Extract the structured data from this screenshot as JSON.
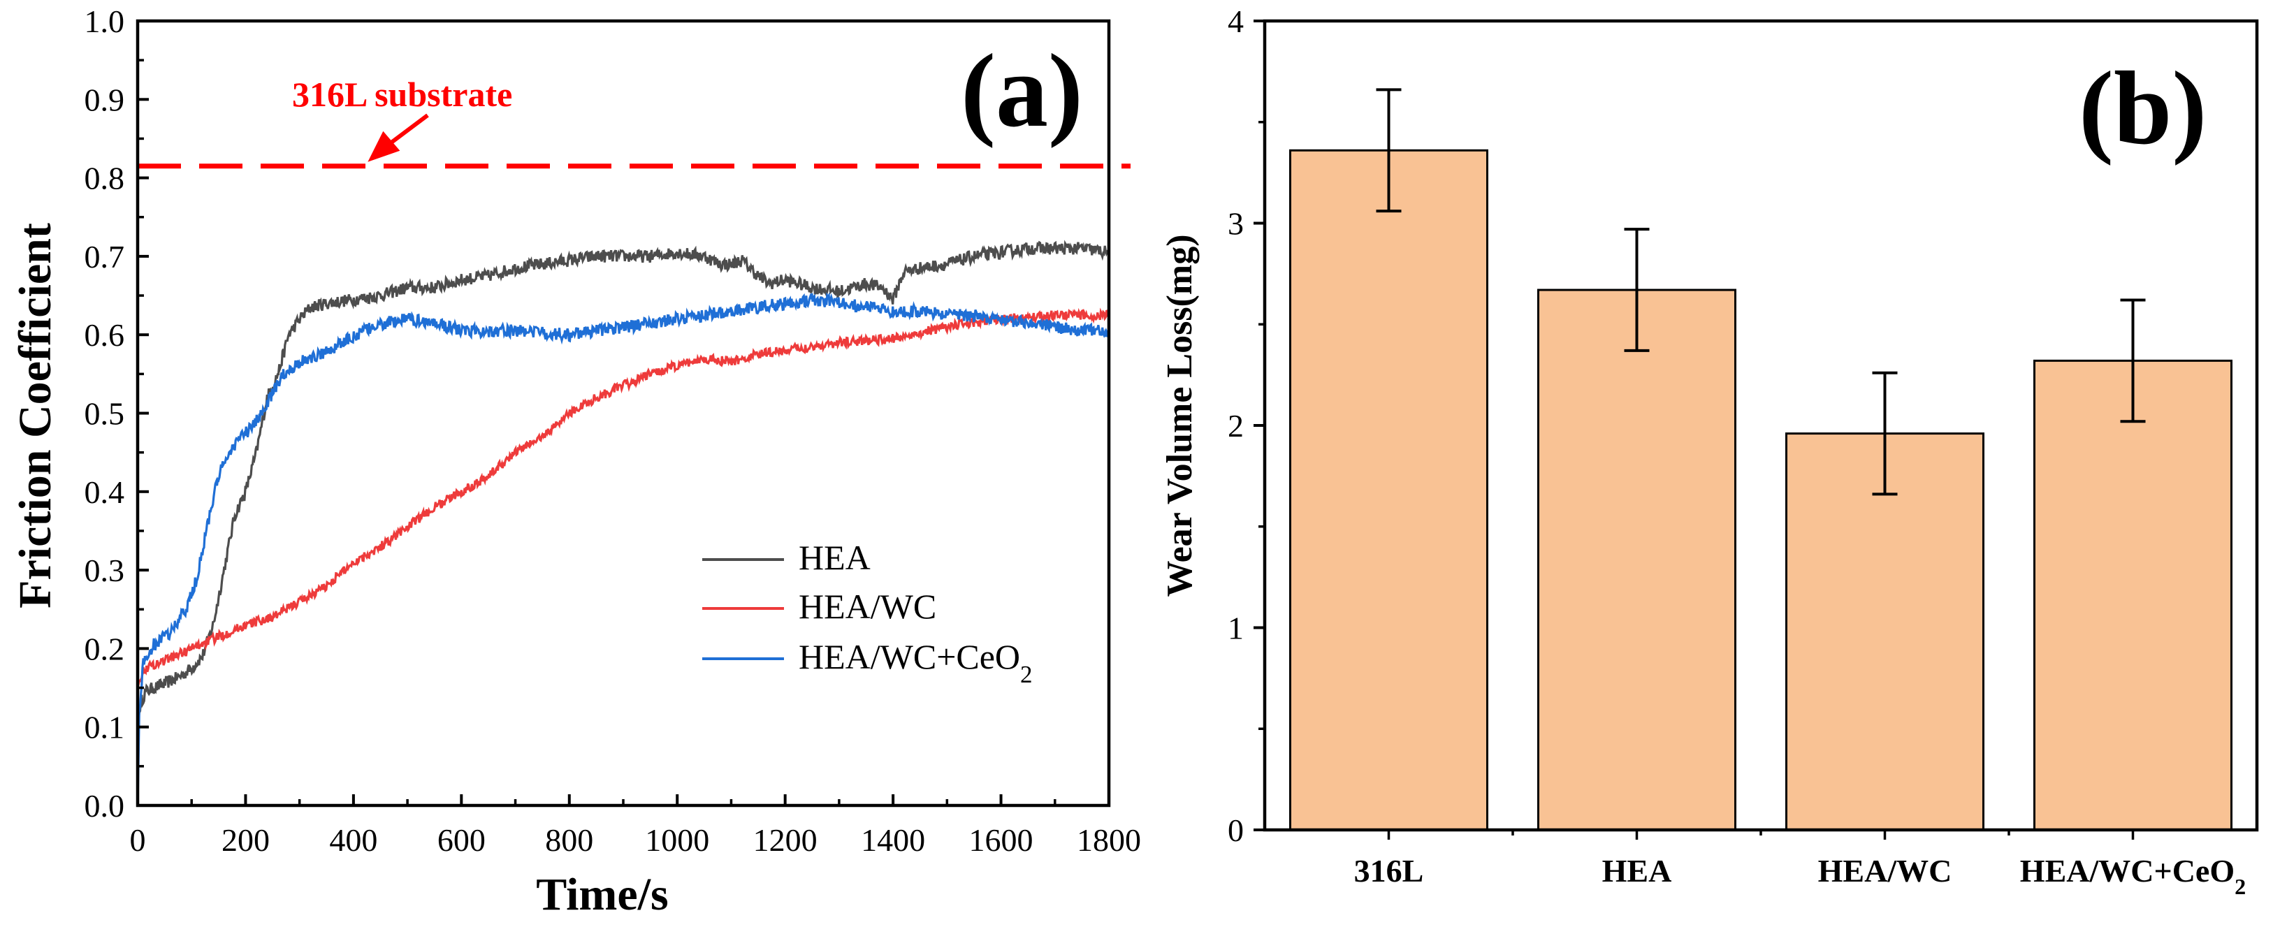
{
  "colors": {
    "hea": "#4d4d4d",
    "hea_wc": "#ee3b3b",
    "hea_wc_ceo2": "#1f6fd6",
    "reference": "#ff0000",
    "bar_fill": "#f9c294",
    "bar_edge": "#000000"
  },
  "chart_data": [
    {
      "panel": "(a)",
      "type": "line",
      "title": "",
      "xlabel": "Time/s",
      "ylabel": "Friction Coefficient",
      "xlim": [
        0,
        1800
      ],
      "ylim": [
        0.0,
        1.0
      ],
      "xticks": [
        "0",
        "200",
        "400",
        "600",
        "800",
        "1000",
        "1200",
        "1400",
        "1600",
        "1800"
      ],
      "yticks": [
        "0.0",
        "0.1",
        "0.2",
        "0.3",
        "0.4",
        "0.5",
        "0.6",
        "0.7",
        "0.8",
        "0.9",
        "1.0"
      ],
      "reference_line": {
        "label": "316L substrate",
        "y": 0.815,
        "style": "dashed",
        "arrow_target_x": 420
      },
      "legend": {
        "position": "lower-right",
        "entries": [
          {
            "series": "HEA",
            "text": "HEA",
            "sub": ""
          },
          {
            "series": "HEA/WC",
            "text": "HEA/WC",
            "sub": ""
          },
          {
            "series": "HEA/WC+CeO2",
            "text": "HEA/WC+CeO",
            "sub": "2"
          }
        ]
      },
      "series": [
        {
          "name": "HEA",
          "color_key": "hea",
          "x": [
            0,
            5,
            15,
            30,
            50,
            80,
            100,
            120,
            140,
            160,
            180,
            200,
            220,
            240,
            260,
            280,
            300,
            320,
            350,
            400,
            450,
            500,
            550,
            600,
            650,
            700,
            750,
            800,
            850,
            900,
            950,
            1000,
            1050,
            1080,
            1100,
            1120,
            1150,
            1170,
            1200,
            1250,
            1300,
            1350,
            1380,
            1400,
            1420,
            1450,
            1500,
            1550,
            1600,
            1650,
            1700,
            1750,
            1800
          ],
          "y": [
            0.1,
            0.13,
            0.145,
            0.15,
            0.155,
            0.165,
            0.175,
            0.19,
            0.23,
            0.3,
            0.37,
            0.4,
            0.45,
            0.52,
            0.55,
            0.6,
            0.62,
            0.635,
            0.64,
            0.645,
            0.65,
            0.66,
            0.66,
            0.67,
            0.675,
            0.685,
            0.69,
            0.695,
            0.7,
            0.7,
            0.7,
            0.705,
            0.7,
            0.69,
            0.69,
            0.695,
            0.675,
            0.665,
            0.67,
            0.66,
            0.655,
            0.665,
            0.66,
            0.645,
            0.68,
            0.685,
            0.69,
            0.7,
            0.705,
            0.71,
            0.71,
            0.71,
            0.705
          ],
          "noise": 0.008
        },
        {
          "name": "HEA/WC",
          "color_key": "hea_wc",
          "x": [
            0,
            5,
            15,
            50,
            100,
            150,
            200,
            250,
            300,
            350,
            400,
            450,
            500,
            550,
            600,
            650,
            700,
            750,
            800,
            850,
            900,
            950,
            1000,
            1050,
            1100,
            1150,
            1200,
            1300,
            1400,
            1500,
            1600,
            1700,
            1800
          ],
          "y": [
            0.15,
            0.165,
            0.175,
            0.185,
            0.2,
            0.215,
            0.23,
            0.24,
            0.26,
            0.28,
            0.31,
            0.33,
            0.355,
            0.38,
            0.4,
            0.42,
            0.45,
            0.47,
            0.5,
            0.52,
            0.535,
            0.55,
            0.56,
            0.57,
            0.565,
            0.575,
            0.58,
            0.59,
            0.595,
            0.61,
            0.62,
            0.625,
            0.625
          ],
          "noise": 0.006
        },
        {
          "name": "HEA/WC+CeO2",
          "color_key": "hea_wc_ceo2",
          "x": [
            0,
            3,
            10,
            30,
            60,
            90,
            110,
            130,
            150,
            170,
            190,
            210,
            230,
            250,
            270,
            300,
            340,
            380,
            420,
            460,
            500,
            550,
            600,
            700,
            800,
            900,
            1000,
            1050,
            1100,
            1150,
            1200,
            1250,
            1300,
            1350,
            1400,
            1450,
            1500,
            1550,
            1600,
            1650,
            1700,
            1750,
            1800
          ],
          "y": [
            0.0,
            0.12,
            0.18,
            0.205,
            0.22,
            0.25,
            0.29,
            0.36,
            0.42,
            0.45,
            0.47,
            0.48,
            0.5,
            0.525,
            0.55,
            0.565,
            0.575,
            0.59,
            0.605,
            0.615,
            0.62,
            0.615,
            0.605,
            0.605,
            0.6,
            0.61,
            0.62,
            0.625,
            0.63,
            0.635,
            0.64,
            0.645,
            0.64,
            0.635,
            0.63,
            0.63,
            0.625,
            0.625,
            0.62,
            0.615,
            0.61,
            0.605,
            0.605
          ],
          "noise": 0.008
        }
      ]
    },
    {
      "panel": "(b)",
      "type": "bar",
      "title": "",
      "xlabel": "",
      "ylabel": "Wear Volume Loss(mg)",
      "ylim": [
        0,
        4
      ],
      "yticks": [
        "0",
        "1",
        "2",
        "3",
        "4"
      ],
      "categories": [
        {
          "text": "316L",
          "sub": ""
        },
        {
          "text": "HEA",
          "sub": ""
        },
        {
          "text": "HEA/WC",
          "sub": ""
        },
        {
          "text": "HEA/WC+CeO",
          "sub": "2"
        }
      ],
      "values": [
        3.36,
        2.67,
        1.96,
        2.32
      ],
      "errors": [
        0.3,
        0.3,
        0.3,
        0.3
      ]
    }
  ]
}
